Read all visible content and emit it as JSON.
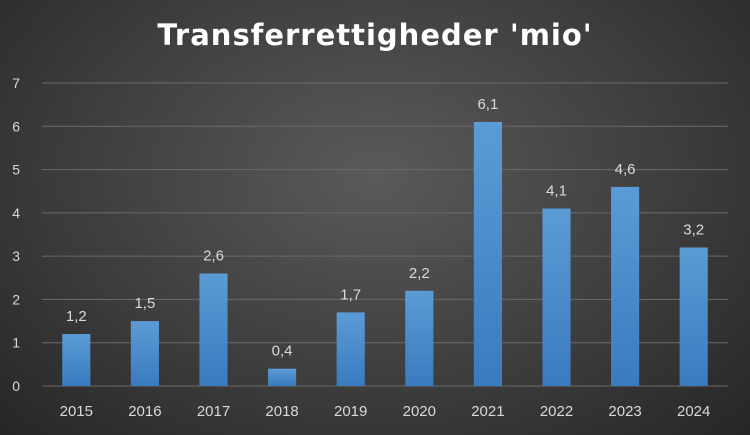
{
  "chart_data": {
    "type": "bar",
    "title": "Transferrettigheder 'mio'",
    "categories": [
      "2015",
      "2016",
      "2017",
      "2018",
      "2019",
      "2020",
      "2021",
      "2022",
      "2023",
      "2024"
    ],
    "values": [
      1.2,
      1.5,
      2.6,
      0.4,
      1.7,
      2.2,
      6.1,
      4.1,
      4.6,
      3.2
    ],
    "data_labels": [
      "1,2",
      "1,5",
      "2,6",
      "0,4",
      "1,7",
      "2,2",
      "6,1",
      "4,1",
      "4,6",
      "3,2"
    ],
    "y_ticks": [
      "0",
      "1",
      "2",
      "3",
      "4",
      "5",
      "6",
      "7"
    ],
    "ylim": [
      0,
      7
    ],
    "xlabel": "",
    "ylabel": "",
    "grid": true,
    "legend": "none",
    "colors": {
      "bar_top": "#5b9bd5",
      "bar_bottom": "#3a7bc0",
      "grid": "#6a6a6a",
      "text": "#d9d9d9",
      "title": "#ffffff"
    }
  }
}
